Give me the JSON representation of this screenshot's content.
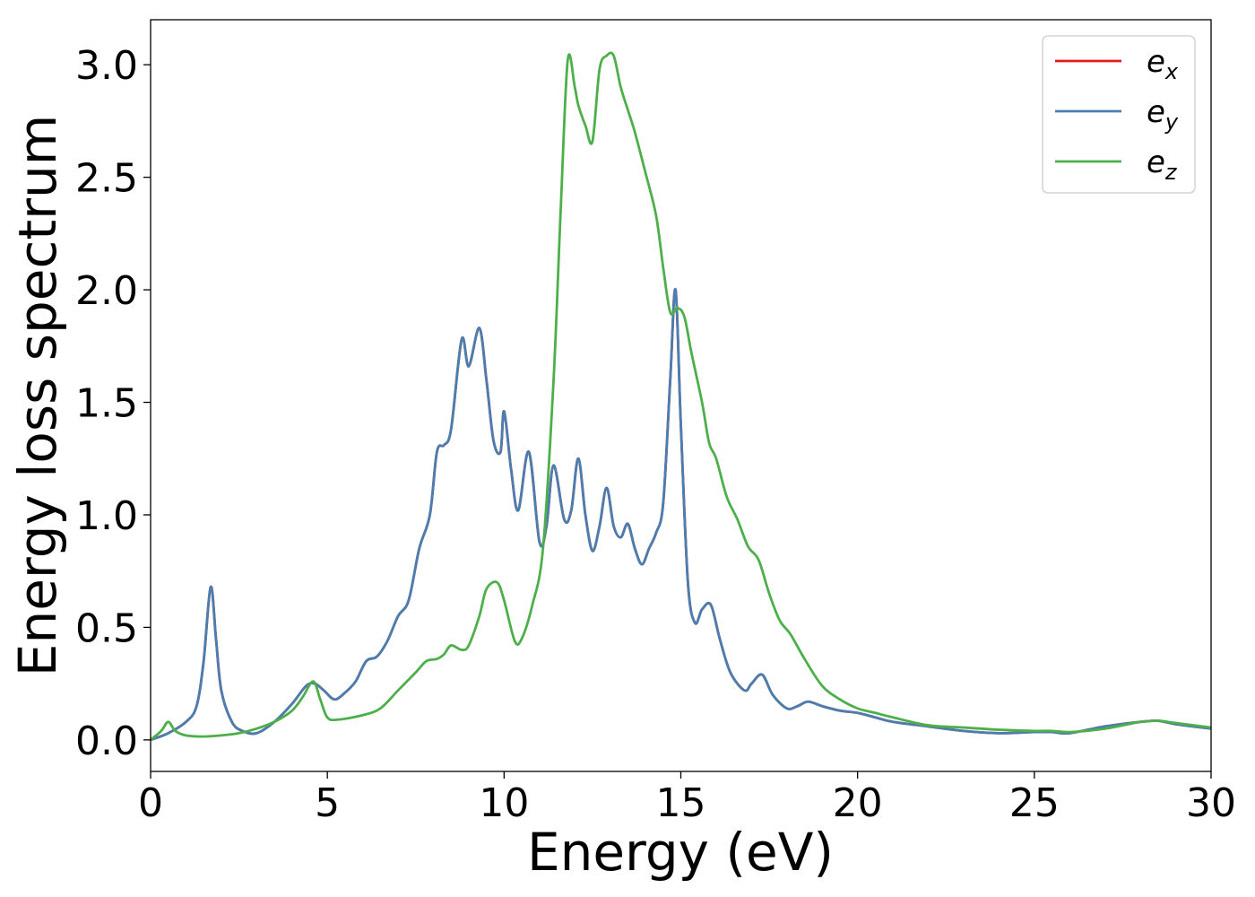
{
  "chart_data": {
    "type": "line",
    "xlabel": "Energy (eV)",
    "ylabel": "Energy loss spectrum",
    "xlim": [
      0,
      30
    ],
    "ylim": [
      -0.14,
      3.2
    ],
    "xticks": [
      0,
      5,
      10,
      15,
      20,
      25,
      30
    ],
    "xtick_labels": [
      "0",
      "5",
      "10",
      "15",
      "20",
      "25",
      "30"
    ],
    "yticks": [
      0.0,
      0.5,
      1.0,
      1.5,
      2.0,
      2.5,
      3.0
    ],
    "ytick_labels": [
      "0.0",
      "0.5",
      "1.0",
      "1.5",
      "2.0",
      "2.5",
      "3.0"
    ],
    "grid": false,
    "legend_position": "top-right",
    "series": [
      {
        "name": "e",
        "sub": "x",
        "color": "#e41a1c",
        "x": [
          0,
          0.5,
          1,
          1.3,
          1.5,
          1.7,
          1.85,
          2,
          2.3,
          2.6,
          3,
          3.5,
          4,
          4.4,
          4.65,
          4.9,
          5.2,
          5.5,
          5.8,
          6.1,
          6.4,
          6.7,
          7,
          7.3,
          7.6,
          7.9,
          8.1,
          8.3,
          8.5,
          8.8,
          9.0,
          9.3,
          9.5,
          9.7,
          9.9,
          10.0,
          10.2,
          10.4,
          10.7,
          11.0,
          11.2,
          11.4,
          11.7,
          11.9,
          12.1,
          12.3,
          12.5,
          12.7,
          12.9,
          13.1,
          13.3,
          13.5,
          13.7,
          13.9,
          14.1,
          14.3,
          14.5,
          14.7,
          14.85,
          15.0,
          15.2,
          15.4,
          15.6,
          15.85,
          16.1,
          16.4,
          16.8,
          17.0,
          17.3,
          17.6,
          18.0,
          18.3,
          18.6,
          19.0,
          19.5,
          20.0,
          20.5,
          21.0,
          22.0,
          23.0,
          24.0,
          25.0,
          25.5,
          26.0,
          27.0,
          28.0,
          28.5,
          29.0,
          30.0
        ],
        "y": [
          0,
          0.03,
          0.08,
          0.15,
          0.35,
          0.68,
          0.45,
          0.22,
          0.08,
          0.04,
          0.03,
          0.08,
          0.16,
          0.24,
          0.25,
          0.22,
          0.18,
          0.21,
          0.26,
          0.35,
          0.37,
          0.44,
          0.55,
          0.62,
          0.85,
          1.0,
          1.28,
          1.31,
          1.38,
          1.78,
          1.66,
          1.83,
          1.6,
          1.33,
          1.28,
          1.46,
          1.2,
          1.02,
          1.28,
          0.88,
          0.95,
          1.22,
          0.98,
          1.02,
          1.25,
          1.0,
          0.84,
          0.95,
          1.12,
          0.95,
          0.9,
          0.96,
          0.85,
          0.78,
          0.85,
          0.92,
          1.05,
          1.6,
          2.0,
          1.4,
          0.7,
          0.52,
          0.58,
          0.6,
          0.45,
          0.3,
          0.22,
          0.25,
          0.29,
          0.2,
          0.14,
          0.15,
          0.17,
          0.15,
          0.13,
          0.12,
          0.1,
          0.08,
          0.06,
          0.04,
          0.03,
          0.035,
          0.035,
          0.03,
          0.06,
          0.08,
          0.085,
          0.07,
          0.05
        ]
      },
      {
        "name": "e",
        "sub": "y",
        "color": "#4a7eb0",
        "x": [
          0,
          0.5,
          1,
          1.3,
          1.5,
          1.7,
          1.85,
          2,
          2.3,
          2.6,
          3,
          3.5,
          4,
          4.4,
          4.65,
          4.9,
          5.2,
          5.5,
          5.8,
          6.1,
          6.4,
          6.7,
          7,
          7.3,
          7.6,
          7.9,
          8.1,
          8.3,
          8.5,
          8.8,
          9.0,
          9.3,
          9.5,
          9.7,
          9.9,
          10.0,
          10.2,
          10.4,
          10.7,
          11.0,
          11.2,
          11.4,
          11.7,
          11.9,
          12.1,
          12.3,
          12.5,
          12.7,
          12.9,
          13.1,
          13.3,
          13.5,
          13.7,
          13.9,
          14.1,
          14.3,
          14.5,
          14.7,
          14.85,
          15.0,
          15.2,
          15.4,
          15.6,
          15.85,
          16.1,
          16.4,
          16.8,
          17.0,
          17.3,
          17.6,
          18.0,
          18.3,
          18.6,
          19.0,
          19.5,
          20.0,
          20.5,
          21.0,
          22.0,
          23.0,
          24.0,
          25.0,
          25.5,
          26.0,
          27.0,
          28.0,
          28.5,
          29.0,
          30.0
        ],
        "y": [
          0,
          0.03,
          0.08,
          0.15,
          0.35,
          0.68,
          0.45,
          0.22,
          0.08,
          0.04,
          0.03,
          0.08,
          0.16,
          0.24,
          0.25,
          0.22,
          0.18,
          0.21,
          0.26,
          0.35,
          0.37,
          0.44,
          0.55,
          0.62,
          0.85,
          1.0,
          1.28,
          1.31,
          1.38,
          1.78,
          1.66,
          1.83,
          1.6,
          1.33,
          1.28,
          1.46,
          1.2,
          1.02,
          1.28,
          0.88,
          0.95,
          1.22,
          0.98,
          1.02,
          1.25,
          1.0,
          0.84,
          0.95,
          1.12,
          0.95,
          0.9,
          0.96,
          0.85,
          0.78,
          0.85,
          0.92,
          1.05,
          1.6,
          2.0,
          1.4,
          0.7,
          0.52,
          0.58,
          0.6,
          0.45,
          0.3,
          0.22,
          0.25,
          0.29,
          0.2,
          0.14,
          0.15,
          0.17,
          0.15,
          0.13,
          0.12,
          0.1,
          0.08,
          0.06,
          0.04,
          0.03,
          0.035,
          0.035,
          0.03,
          0.06,
          0.08,
          0.085,
          0.07,
          0.05
        ]
      },
      {
        "name": "e",
        "sub": "z",
        "color": "#4daf4a",
        "x": [
          0,
          0.3,
          0.5,
          0.7,
          1.0,
          1.5,
          2,
          2.5,
          3,
          3.5,
          4,
          4.3,
          4.6,
          4.8,
          5.0,
          5.3,
          6.0,
          6.5,
          7.0,
          7.5,
          7.8,
          8.1,
          8.3,
          8.5,
          8.8,
          9.0,
          9.3,
          9.5,
          9.8,
          10.0,
          10.3,
          10.5,
          10.8,
          11.1,
          11.4,
          11.6,
          11.8,
          12.0,
          12.1,
          12.3,
          12.5,
          12.7,
          12.9,
          13.1,
          13.3,
          13.5,
          13.7,
          14.0,
          14.3,
          14.5,
          14.7,
          14.9,
          15.1,
          15.3,
          15.6,
          15.8,
          16.0,
          16.3,
          16.6,
          16.9,
          17.2,
          17.5,
          17.8,
          18.1,
          18.5,
          19.0,
          19.5,
          20.0,
          20.5,
          21.0,
          22.0,
          23.0,
          24.0,
          25.0,
          25.5,
          26.0,
          27.0,
          28.0,
          28.5,
          29.0,
          30.0
        ],
        "y": [
          0,
          0.04,
          0.08,
          0.04,
          0.02,
          0.015,
          0.02,
          0.03,
          0.05,
          0.08,
          0.13,
          0.19,
          0.26,
          0.18,
          0.1,
          0.09,
          0.11,
          0.14,
          0.22,
          0.3,
          0.35,
          0.36,
          0.38,
          0.42,
          0.4,
          0.42,
          0.55,
          0.67,
          0.7,
          0.62,
          0.44,
          0.45,
          0.6,
          0.85,
          1.6,
          2.35,
          3.02,
          2.9,
          2.82,
          2.73,
          2.66,
          2.98,
          3.04,
          3.04,
          2.9,
          2.8,
          2.7,
          2.52,
          2.33,
          2.1,
          1.9,
          1.92,
          1.88,
          1.72,
          1.5,
          1.32,
          1.25,
          1.08,
          0.98,
          0.86,
          0.8,
          0.65,
          0.53,
          0.47,
          0.36,
          0.24,
          0.18,
          0.14,
          0.12,
          0.1,
          0.065,
          0.055,
          0.045,
          0.04,
          0.04,
          0.035,
          0.05,
          0.08,
          0.085,
          0.075,
          0.055
        ]
      }
    ]
  }
}
